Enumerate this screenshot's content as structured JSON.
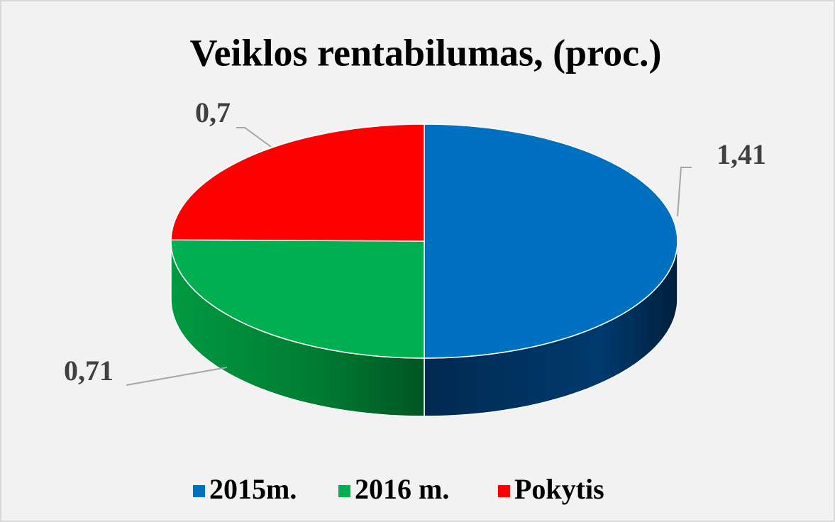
{
  "chart_data": {
    "type": "pie3d",
    "title": "Veiklos rentabilumas, (proc.)",
    "categories": [
      "2015m.",
      "2016 m.",
      "Pokytis"
    ],
    "values": [
      1.41,
      0.71,
      0.7
    ],
    "value_labels": [
      "1,41",
      "0,71",
      "0,7"
    ],
    "colors": [
      "#0070c0",
      "#00b050",
      "#ff0000"
    ],
    "legend": "bottom"
  }
}
